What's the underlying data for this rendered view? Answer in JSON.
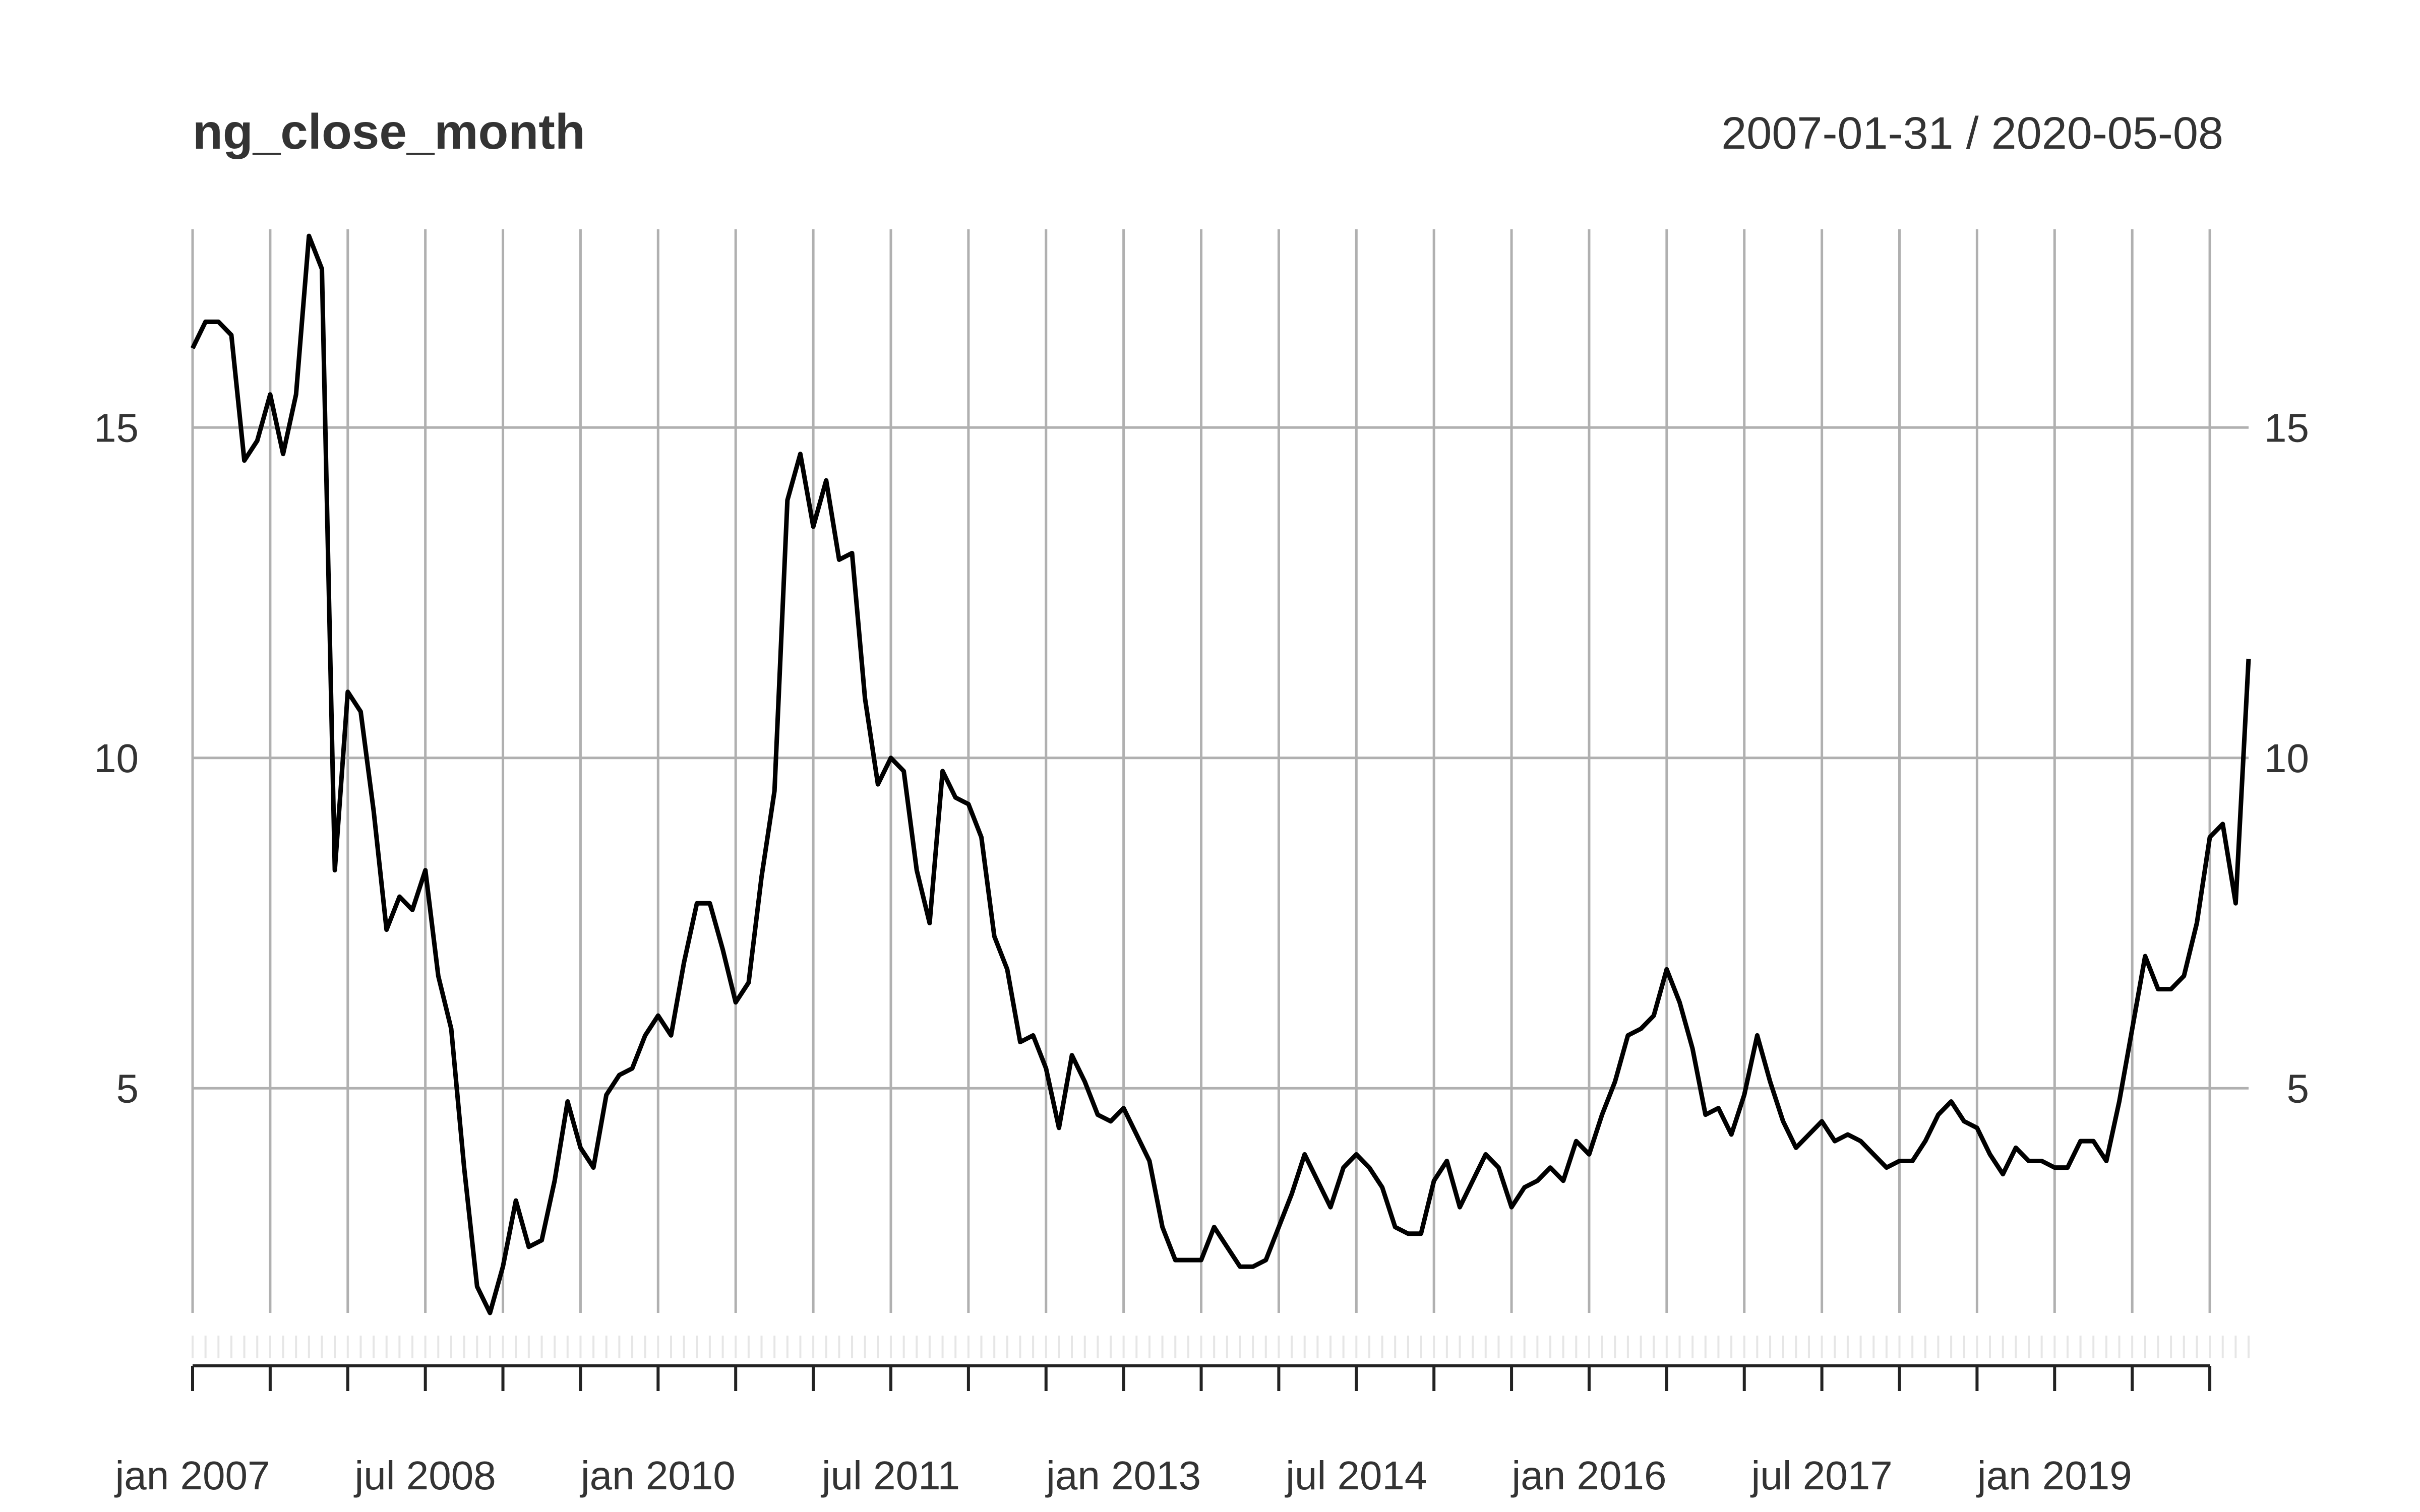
{
  "chart_data": {
    "type": "line",
    "title": "ng_close_month",
    "subtitle": "2007-01-31 / 2020-05-08",
    "xlabel": "",
    "ylabel": "",
    "grid": true,
    "ylim": [
      1.6,
      18.0
    ],
    "y_ticks": [
      5,
      10,
      15
    ],
    "x_start": "2007-01",
    "x_end": "2020-05",
    "x_tick_labels": [
      "jan 2007",
      "jul 2008",
      "jan 2010",
      "jul 2011",
      "jan 2013",
      "jul 2014",
      "jan 2016",
      "jul 2017",
      "jan 2019"
    ],
    "series": [
      {
        "values": [
          16.2,
          16.6,
          16.6,
          16.4,
          14.5,
          14.8,
          15.5,
          14.6,
          15.5,
          17.9,
          17.4,
          8.3,
          11.0,
          10.7,
          9.2,
          7.4,
          7.9,
          7.7,
          8.3,
          6.7,
          5.9,
          3.8,
          2.0,
          1.6,
          2.3,
          3.3,
          2.6,
          2.7,
          3.6,
          4.8,
          4.1,
          3.8,
          4.9,
          5.2,
          5.3,
          5.8,
          6.1,
          5.8,
          6.9,
          7.8,
          7.8,
          7.1,
          6.3,
          6.6,
          8.2,
          9.5,
          13.9,
          14.6,
          13.5,
          14.2,
          13.0,
          13.1,
          10.9,
          9.6,
          10.0,
          9.8,
          8.3,
          7.5,
          9.8,
          9.4,
          9.3,
          8.8,
          7.3,
          6.8,
          5.7,
          5.8,
          5.3,
          4.4,
          5.5,
          5.1,
          4.6,
          4.5,
          4.7,
          4.3,
          3.9,
          2.9,
          2.4,
          2.4,
          2.4,
          2.9,
          2.6,
          2.3,
          2.3,
          2.4,
          2.9,
          3.4,
          4.0,
          3.6,
          3.2,
          3.8,
          4.0,
          3.8,
          3.5,
          2.9,
          2.8,
          2.8,
          3.6,
          3.9,
          3.2,
          3.6,
          4.0,
          3.8,
          3.2,
          3.5,
          3.6,
          3.8,
          3.6,
          4.2,
          4.0,
          4.6,
          5.1,
          5.8,
          5.9,
          6.1,
          6.8,
          6.3,
          5.6,
          4.6,
          4.7,
          4.3,
          4.9,
          5.8,
          5.1,
          4.5,
          4.1,
          4.3,
          4.5,
          4.2,
          4.3,
          4.2,
          4.0,
          3.8,
          3.9,
          3.9,
          4.2,
          4.6,
          4.8,
          4.5,
          4.4,
          4.0,
          3.7,
          4.1,
          3.9,
          3.9,
          3.8,
          3.8,
          4.2,
          4.2,
          3.9,
          4.8,
          5.9,
          7.0,
          6.5,
          6.5,
          6.7,
          7.5,
          8.8,
          9.0,
          7.8,
          11.5
        ]
      }
    ]
  }
}
